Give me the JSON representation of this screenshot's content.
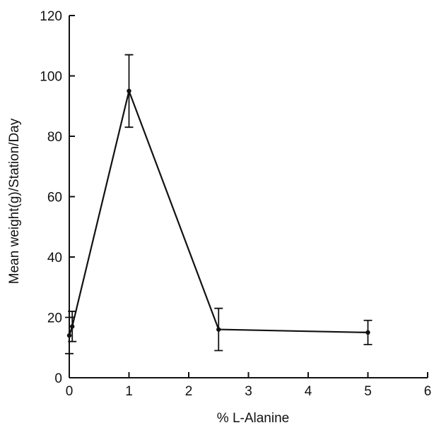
{
  "chart_data": {
    "type": "line",
    "title": "",
    "xlabel": "% L-Alanine",
    "ylabel": "Mean weight(g)/Station/Day",
    "xlim": [
      0,
      6
    ],
    "ylim": [
      0,
      120
    ],
    "x_ticks": [
      "0",
      "1",
      "2",
      "3",
      "4",
      "5",
      "6"
    ],
    "y_ticks": [
      "0",
      "20",
      "40",
      "60",
      "80",
      "100",
      "120"
    ],
    "grid": false,
    "series": [
      {
        "x": [
          0,
          0.05,
          1,
          2.5,
          5
        ],
        "values": [
          14,
          17,
          95,
          16,
          15
        ],
        "error_low": [
          8,
          12,
          83,
          9,
          11
        ],
        "error_high": [
          20,
          22,
          107,
          23,
          19
        ]
      }
    ]
  }
}
